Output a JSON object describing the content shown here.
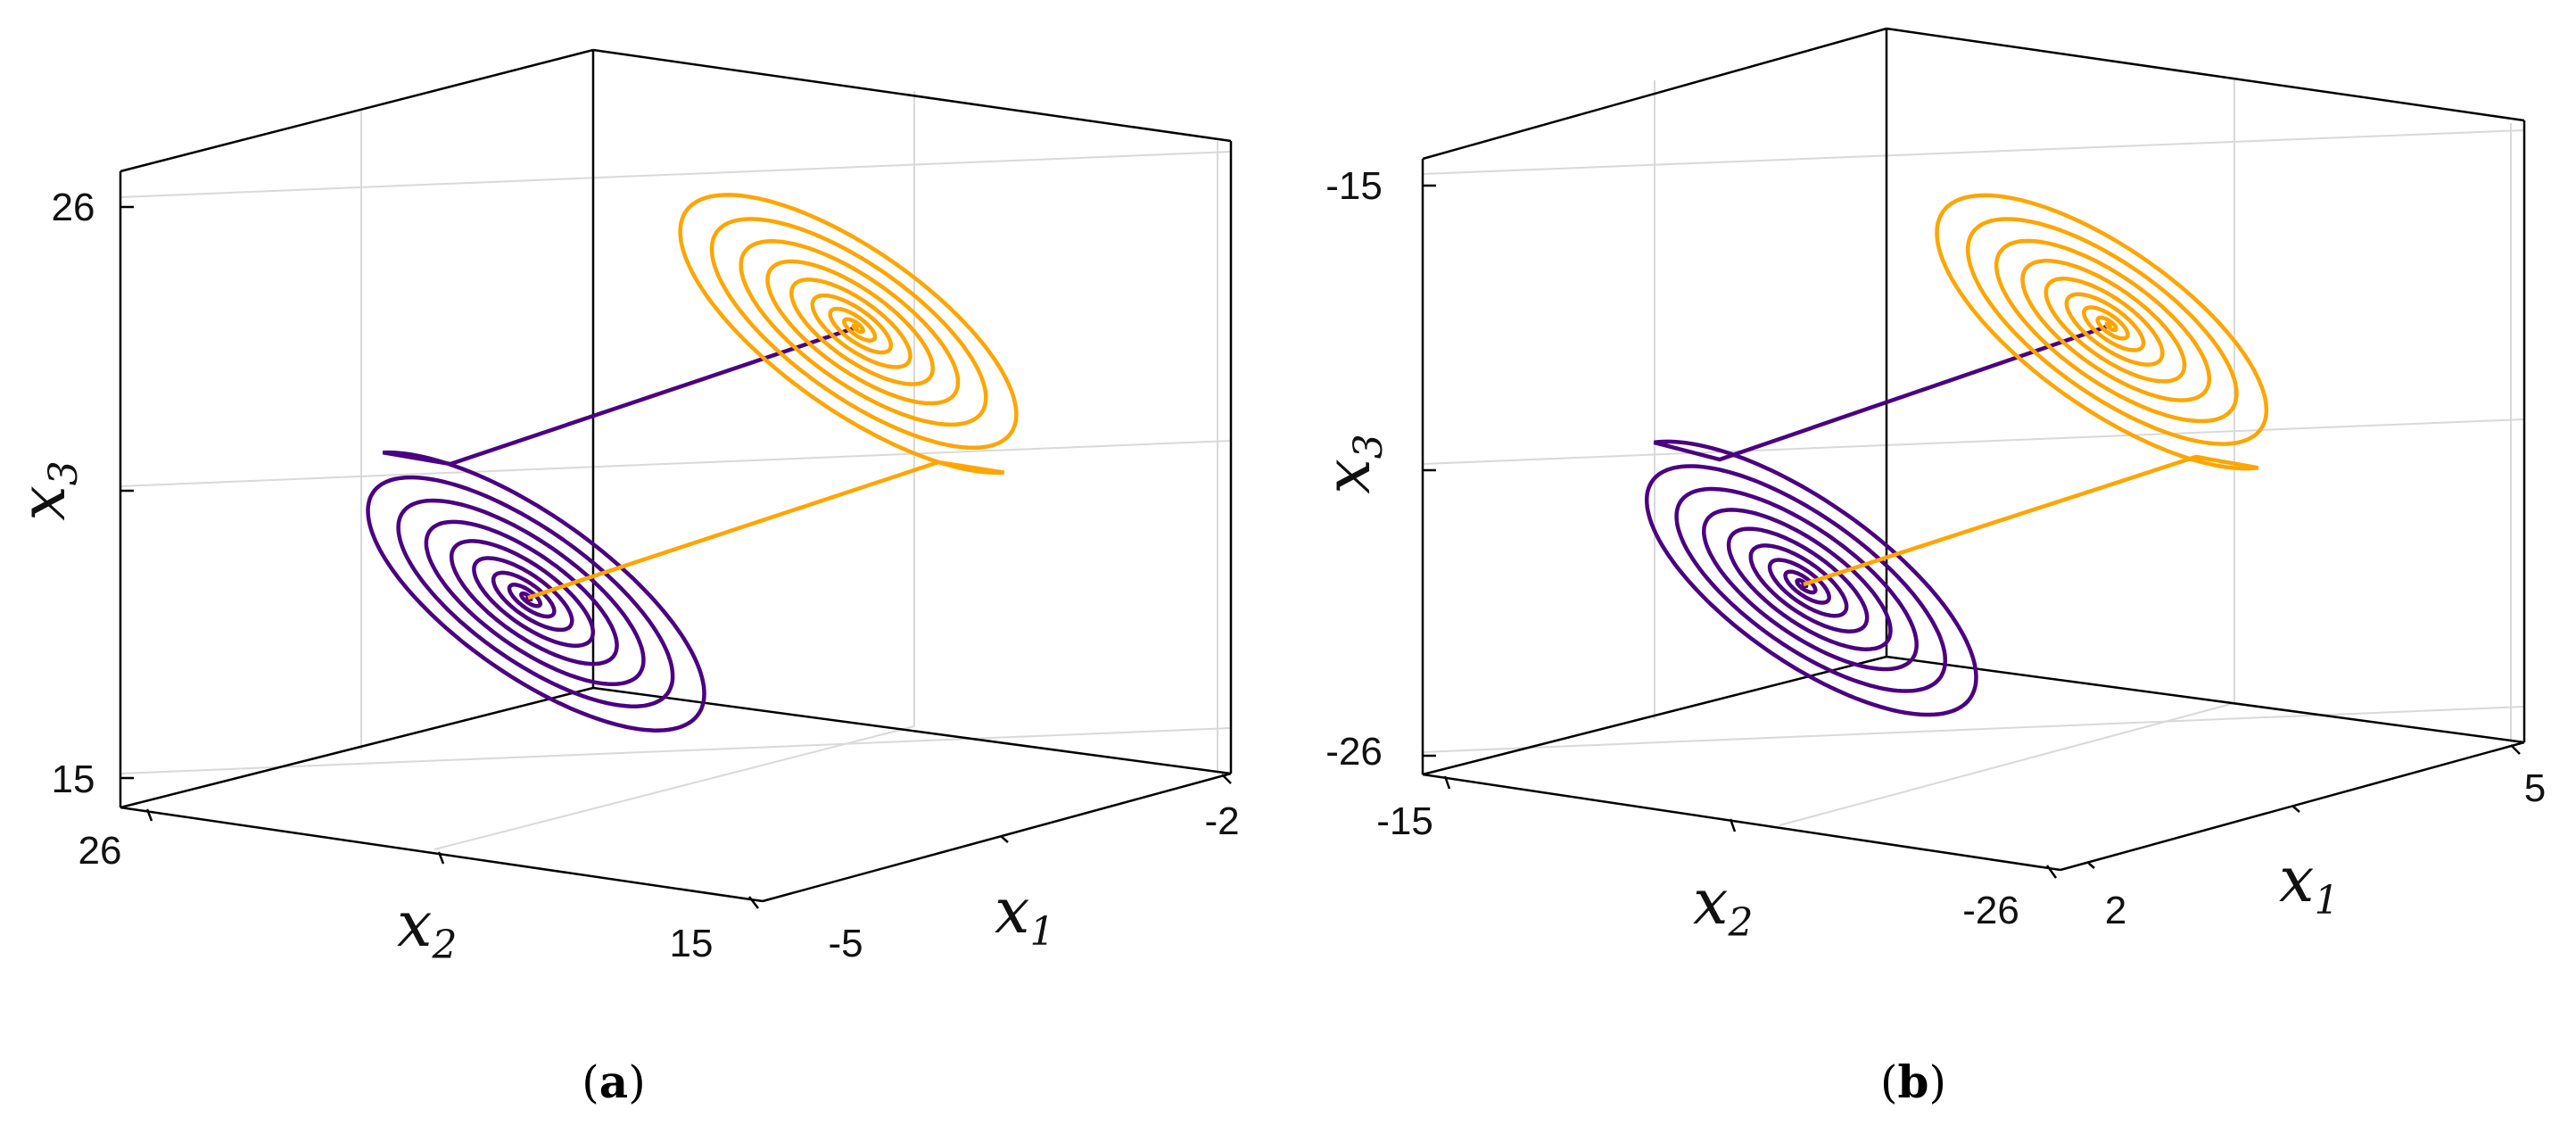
{
  "colors": {
    "series_a": "#4b0082",
    "series_b": "#ffa500",
    "grid": "#d9d9d9",
    "axis": "#000000"
  },
  "chart_data": [
    {
      "type": "line3d",
      "panel_label": "(a)",
      "xlabel": "x",
      "xlabel_sub": "1",
      "ylabel": "x",
      "ylabel_sub": "2",
      "zlabel": "x",
      "zlabel_sub": "3",
      "x_ticks": [
        "-5",
        "-2"
      ],
      "y_ticks": [
        "26",
        "15"
      ],
      "z_ticks": [
        "26",
        "15"
      ],
      "grid": true,
      "series": [
        {
          "color_key": "series_a",
          "spiral_center": [
            -4.8,
            20.5,
            17.9
          ],
          "start_point": [
            -2.8,
            24.0,
            23.4
          ],
          "turns": 9
        },
        {
          "color_key": "series_b",
          "spiral_center": [
            -2.8,
            17.8,
            23.4
          ],
          "start_point": [
            -4.8,
            19.9,
            17.9
          ],
          "turns": 9
        }
      ]
    },
    {
      "type": "line3d",
      "panel_label": "(b)",
      "xlabel": "x",
      "xlabel_sub": "1",
      "ylabel": "x",
      "ylabel_sub": "2",
      "zlabel": "x",
      "zlabel_sub": "3",
      "x_ticks": [
        "2",
        "5"
      ],
      "y_ticks": [
        "-15",
        "-26"
      ],
      "z_ticks": [
        "-15",
        "-26"
      ],
      "grid": true,
      "series": [
        {
          "color_key": "series_a",
          "spiral_center": [
            2.2,
            -19.5,
            -23.4
          ],
          "start_point": [
            4.2,
            -16.0,
            -17.9
          ],
          "turns": 9
        },
        {
          "color_key": "series_b",
          "spiral_center": [
            4.2,
            -22.2,
            -17.9
          ],
          "start_point": [
            2.2,
            -20.1,
            -23.4
          ],
          "turns": 9
        }
      ]
    }
  ]
}
